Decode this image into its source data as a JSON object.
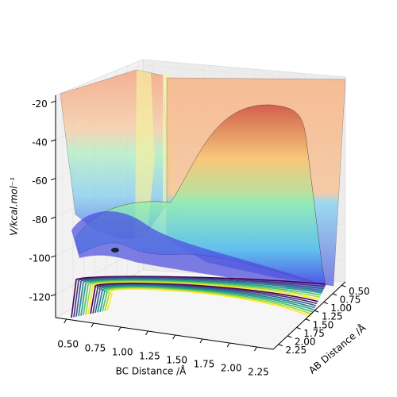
{
  "chart_data": {
    "type": "surface",
    "xlabel": "BC Distance /Å",
    "ylabel": "AB Distance /Å",
    "zlabel": "V/kcal.mol⁻¹",
    "xlim": [
      0.4,
      2.4
    ],
    "xticks": [
      {
        "value": 0.5,
        "label": "0.50"
      },
      {
        "value": 0.75,
        "label": "0.75"
      },
      {
        "value": 1.0,
        "label": "1.00"
      },
      {
        "value": 1.25,
        "label": "1.25"
      },
      {
        "value": 1.5,
        "label": "1.50"
      },
      {
        "value": 1.75,
        "label": "1.75"
      },
      {
        "value": 2.0,
        "label": "2.00"
      },
      {
        "value": 2.25,
        "label": "2.25"
      }
    ],
    "ylim": [
      0.4,
      2.4
    ],
    "yticks": [
      {
        "value": 0.5,
        "label": "0.50"
      },
      {
        "value": 0.75,
        "label": "0.75"
      },
      {
        "value": 1.0,
        "label": "1.00"
      },
      {
        "value": 1.25,
        "label": "1.25"
      },
      {
        "value": 1.5,
        "label": "1.50"
      },
      {
        "value": 1.75,
        "label": "1.75"
      },
      {
        "value": 2.0,
        "label": "2.00"
      },
      {
        "value": 2.25,
        "label": "2.25"
      }
    ],
    "zlim": [
      -132,
      -17
    ],
    "zticks": [
      -120,
      -100,
      -80,
      -60,
      -40,
      -20
    ],
    "grid": true
  }
}
